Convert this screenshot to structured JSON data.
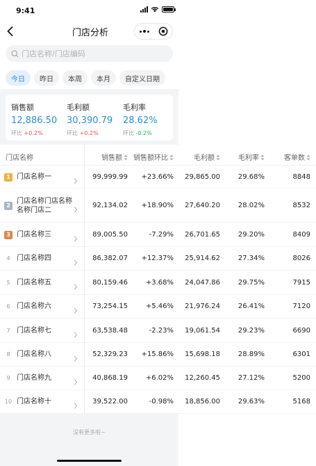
{
  "status_bar": {
    "time": "9:41"
  },
  "nav": {
    "title": "门店分析"
  },
  "search": {
    "placeholder": "门店名称/门店编码"
  },
  "date_tabs": [
    {
      "label": "今日",
      "active": true
    },
    {
      "label": "昨日",
      "active": false
    },
    {
      "label": "本周",
      "active": false
    },
    {
      "label": "本月",
      "active": false
    },
    {
      "label": "自定义日期",
      "active": false
    }
  ],
  "summary": [
    {
      "label": "销售额",
      "value": "12,886.50",
      "change_label": "环比",
      "change": "+0.2%",
      "trend": "up"
    },
    {
      "label": "毛利额",
      "value": "30,390.79",
      "change_label": "环比",
      "change": "+0.2%",
      "trend": "up"
    },
    {
      "label": "毛利率",
      "value": "28.62%",
      "change_label": "环比",
      "change": "-0.2%",
      "trend": "down"
    }
  ],
  "table": {
    "headers": {
      "store": "门店名称",
      "sales": "销售额",
      "sales_mom": "销售额环比",
      "gross_profit": "毛利额",
      "gross_margin": "毛利率",
      "orders": "客单数"
    },
    "rows": [
      {
        "rank": "1",
        "name": "门店名称一",
        "sales": "99,999.99",
        "mom": "+23.66%",
        "trend": "up",
        "profit": "29,865.00",
        "margin": "29.68%",
        "orders": "8848"
      },
      {
        "rank": "2",
        "name": "门店名称门店名称名称门店二",
        "sales": "92,134.02",
        "mom": "+18.90%",
        "trend": "up",
        "profit": "27,640.20",
        "margin": "28.02%",
        "orders": "8532"
      },
      {
        "rank": "3",
        "name": "门店名称三",
        "sales": "89,005.50",
        "mom": "-7.29%",
        "trend": "down",
        "profit": "26,701.65",
        "margin": "29.20%",
        "orders": "8409"
      },
      {
        "rank": "4",
        "name": "门店名称四",
        "sales": "86,382.07",
        "mom": "+12.37%",
        "trend": "up",
        "profit": "25,914.62",
        "margin": "27.34%",
        "orders": "8026"
      },
      {
        "rank": "5",
        "name": "门店名称五",
        "sales": "80,159.46",
        "mom": "+3.68%",
        "trend": "up",
        "profit": "24,047.86",
        "margin": "29.75%",
        "orders": "7915"
      },
      {
        "rank": "6",
        "name": "门店名称六",
        "sales": "73,254.15",
        "mom": "+5.46%",
        "trend": "up",
        "profit": "21,976.24",
        "margin": "26.41%",
        "orders": "7120"
      },
      {
        "rank": "7",
        "name": "门店名称七",
        "sales": "63,538.48",
        "mom": "-2.23%",
        "trend": "down",
        "profit": "19,061.54",
        "margin": "29.23%",
        "orders": "6690"
      },
      {
        "rank": "8",
        "name": "门店名称八",
        "sales": "52,329.23",
        "mom": "+15.86%",
        "trend": "up",
        "profit": "15,698.18",
        "margin": "28.89%",
        "orders": "6301"
      },
      {
        "rank": "9",
        "name": "门店名称九",
        "sales": "40,868.19",
        "mom": "+6.02%",
        "trend": "up",
        "profit": "12,260.45",
        "margin": "27.12%",
        "orders": "5200"
      },
      {
        "rank": "10",
        "name": "门店名称十",
        "sales": "39,522.00",
        "mom": "-0.98%",
        "trend": "down",
        "profit": "18,856.00",
        "margin": "29.63%",
        "orders": "5168"
      }
    ]
  },
  "footer": {
    "no_more": "没有更多啦~"
  },
  "colors": {
    "accent": "#2a8fe0",
    "up": "#f04848",
    "down": "#25b05a",
    "gold": "#f3b13c",
    "silver": "#a9b4c2",
    "bronze": "#d98a4a"
  },
  "icons": {
    "back": "chevron-left-icon",
    "more": "more-dots-icon",
    "close": "target-close-icon",
    "search": "search-icon",
    "sort": "sort-icon",
    "row_chevron": "chevron-right-icon"
  }
}
